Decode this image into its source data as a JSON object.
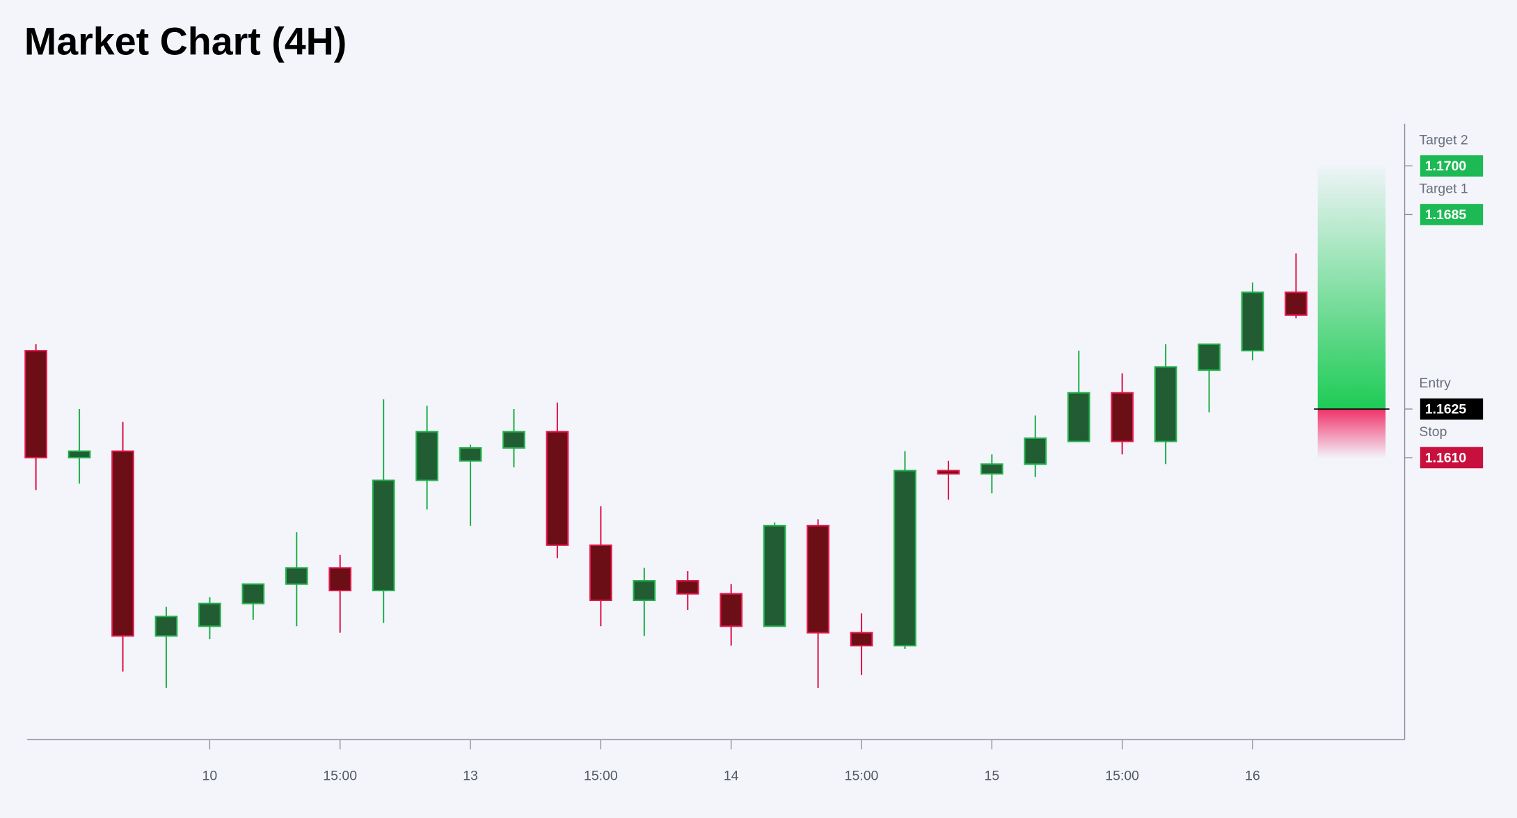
{
  "chart_data": {
    "type": "candlestick",
    "title": "Market Chart (4H)",
    "x": [
      0,
      1,
      2,
      3,
      4,
      5,
      6,
      7,
      8,
      9,
      10,
      11,
      12,
      13,
      14,
      15,
      16,
      17,
      18,
      19,
      20,
      21,
      22,
      23,
      24,
      25,
      26,
      27,
      28,
      29
    ],
    "open": [
      1.1643,
      1.161,
      1.1612,
      1.1555,
      1.1558,
      1.1565,
      1.1571,
      1.1576,
      1.1569,
      1.1603,
      1.1609,
      1.1613,
      1.1618,
      1.1583,
      1.1566,
      1.1572,
      1.1568,
      1.1558,
      1.1589,
      1.1556,
      1.1552,
      1.1606,
      1.1605,
      1.1608,
      1.1615,
      1.163,
      1.1615,
      1.1637,
      1.1643,
      1.1661
    ],
    "high": [
      1.1645,
      1.1625,
      1.1621,
      1.1564,
      1.1567,
      1.1571,
      1.1587,
      1.158,
      1.1628,
      1.1626,
      1.1614,
      1.1625,
      1.1627,
      1.1595,
      1.1576,
      1.1575,
      1.1571,
      1.159,
      1.1591,
      1.1562,
      1.1612,
      1.1609,
      1.1611,
      1.1623,
      1.1643,
      1.1636,
      1.1645,
      1.1645,
      1.1664,
      1.1673
    ],
    "low": [
      1.16,
      1.1602,
      1.1544,
      1.1539,
      1.1554,
      1.156,
      1.1558,
      1.1556,
      1.1559,
      1.1594,
      1.1589,
      1.1607,
      1.1579,
      1.1558,
      1.1555,
      1.1563,
      1.1552,
      1.1558,
      1.1539,
      1.1543,
      1.1551,
      1.1597,
      1.1599,
      1.1604,
      1.1615,
      1.1611,
      1.1608,
      1.1624,
      1.164,
      1.1653
    ],
    "close": [
      1.161,
      1.1612,
      1.1555,
      1.1561,
      1.1565,
      1.1571,
      1.1576,
      1.1569,
      1.1603,
      1.1618,
      1.1613,
      1.1618,
      1.1583,
      1.1566,
      1.1572,
      1.1568,
      1.1558,
      1.1589,
      1.1556,
      1.1552,
      1.1606,
      1.1605,
      1.1608,
      1.1616,
      1.163,
      1.1615,
      1.1638,
      1.1645,
      1.1661,
      1.1654
    ],
    "up_color": "#22b04b",
    "down_color": "#e0184a",
    "xlim": [
      -0.2,
      31.5
    ],
    "ylim": [
      1.1523,
      1.1713
    ],
    "xticks": [
      {
        "value": 4,
        "label": "10"
      },
      {
        "value": 7,
        "label": "15:00"
      },
      {
        "value": 10,
        "label": "13"
      },
      {
        "value": 13,
        "label": "15:00"
      },
      {
        "value": 16,
        "label": "14"
      },
      {
        "value": 19,
        "label": "15:00"
      },
      {
        "value": 22,
        "label": "15"
      },
      {
        "value": 25,
        "label": "15:00"
      },
      {
        "value": 28,
        "label": "16"
      }
    ],
    "levels": [
      {
        "name": "Target 2",
        "value": 1.17,
        "label": "1.1700",
        "color": "#1db954"
      },
      {
        "name": "Target 1",
        "value": 1.1685,
        "label": "1.1685",
        "color": "#1db954"
      },
      {
        "name": "Entry",
        "value": 1.1625,
        "label": "1.1625",
        "color": "#000000"
      },
      {
        "name": "Stop",
        "value": 1.161,
        "label": "1.1610",
        "color": "#c8103e"
      }
    ]
  }
}
